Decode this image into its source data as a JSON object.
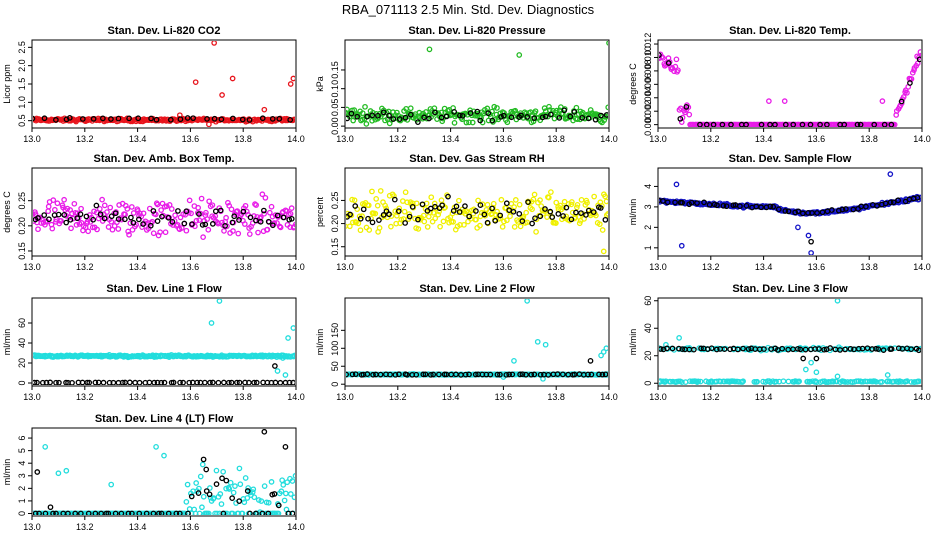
{
  "figure_title": "RBA_071113  2.5 Min. Std. Dev. Diagnostics",
  "colors": {
    "red": "#e8141c",
    "green": "#22bb22",
    "magenta": "#e81ce8",
    "yellow": "#f0f000",
    "blue": "#1414c8",
    "cyan": "#22dddd",
    "black": "#000000"
  },
  "chart_data": [
    {
      "type": "scatter",
      "title": "Stan. Dev. Li-820 CO2",
      "ylabel": "Licor ppm",
      "xlim": [
        13.0,
        14.0
      ],
      "ylim": [
        0.3,
        2.7
      ],
      "xticks": [
        "13.0",
        "13.2",
        "13.4",
        "13.6",
        "13.8",
        "14.0"
      ],
      "yticks": [
        {
          "v": 0.5,
          "label": "0.5"
        },
        {
          "v": 1.0,
          "label": "1.0"
        },
        {
          "v": 1.5,
          "label": "1.5"
        },
        {
          "v": 2.0,
          "label": "2.0"
        },
        {
          "v": 2.5,
          "label": "2.5"
        }
      ],
      "series": [
        {
          "name": "main",
          "color": "red",
          "base": 0.52,
          "noise": 0.06,
          "spikes": [
            [
              13.69,
              2.62
            ],
            [
              13.62,
              1.55
            ],
            [
              13.76,
              1.65
            ],
            [
              13.72,
              1.2
            ],
            [
              13.99,
              1.65
            ],
            [
              13.98,
              1.5
            ],
            [
              13.88,
              0.8
            ],
            [
              13.67,
              0.4
            ],
            [
              13.56,
              0.65
            ]
          ]
        },
        {
          "name": "overlay",
          "color": "black",
          "base": 0.55,
          "noise": 0.05,
          "count": 28,
          "spikes": []
        }
      ]
    },
    {
      "type": "scatter",
      "title": "Stan. Dev. Li-820 Pressure",
      "ylabel": "kPa",
      "xlim": [
        13.0,
        14.0
      ],
      "ylim": [
        -0.005,
        0.23
      ],
      "xticks": [
        "13.0",
        "13.2",
        "13.4",
        "13.6",
        "13.8",
        "14.0"
      ],
      "yticks": [
        {
          "v": 0.0,
          "label": "0.00"
        },
        {
          "v": 0.05,
          "label": "0.05"
        },
        {
          "v": 0.1,
          "label": "0.10"
        },
        {
          "v": 0.15,
          "label": "0.15"
        }
      ],
      "series": [
        {
          "name": "main",
          "color": "green",
          "base": 0.03,
          "noise": 0.028,
          "spikes": [
            [
              13.32,
              0.205
            ],
            [
              13.66,
              0.19
            ],
            [
              14.0,
              0.222
            ]
          ]
        },
        {
          "name": "overlay",
          "color": "black",
          "base": 0.025,
          "noise": 0.02,
          "count": 45,
          "spikes": []
        }
      ]
    },
    {
      "type": "scatter",
      "title": "Stan. Dev. Li-820 Temp.",
      "ylabel": "degrees C",
      "xlim": [
        13.0,
        14.0
      ],
      "ylim": [
        -0.0005,
        0.0126
      ],
      "xticks": [
        "13.0",
        "13.2",
        "13.4",
        "13.6",
        "13.8",
        "14.0"
      ],
      "yticks": [
        {
          "v": 0.0,
          "label": "0.000"
        },
        {
          "v": 0.002,
          "label": "0.002"
        },
        {
          "v": 0.004,
          "label": "0.004"
        },
        {
          "v": 0.006,
          "label": "0.006"
        },
        {
          "v": 0.008,
          "label": "0.008"
        },
        {
          "v": 0.01,
          "label": "0.010"
        },
        {
          "v": 0.012,
          "label": "0.012"
        }
      ],
      "series": [
        {
          "name": "main",
          "color": "magenta",
          "base": 0.0,
          "noise": 0.0,
          "profile": "temp",
          "spikes": [
            [
              13.42,
              0.0035
            ],
            [
              13.48,
              0.0035
            ],
            [
              13.85,
              0.0035
            ]
          ]
        },
        {
          "name": "overlay",
          "color": "black",
          "base": 0.0,
          "noise": 0.0,
          "count": 30,
          "profile": "temp",
          "spikes": []
        }
      ]
    },
    {
      "type": "scatter",
      "title": "Stan. Dev. Amb. Box Temp.",
      "ylabel": "degrees C",
      "xlim": [
        13.0,
        14.0
      ],
      "ylim": [
        0.14,
        0.315
      ],
      "xticks": [
        "13.0",
        "13.2",
        "13.4",
        "13.6",
        "13.8",
        "14.0"
      ],
      "yticks": [
        {
          "v": 0.15,
          "label": "0.15"
        },
        {
          "v": 0.2,
          "label": "0.20"
        },
        {
          "v": 0.25,
          "label": "0.25"
        }
      ],
      "series": [
        {
          "name": "main",
          "color": "magenta",
          "base": 0.215,
          "noise": 0.055,
          "spikes": []
        },
        {
          "name": "overlay",
          "color": "black",
          "base": 0.215,
          "noise": 0.03,
          "count": 55,
          "spikes": []
        }
      ]
    },
    {
      "type": "scatter",
      "title": "Stan. Dev. Gas Stream RH",
      "ylabel": "percent",
      "xlim": [
        13.0,
        14.0
      ],
      "ylim": [
        0.13,
        0.32
      ],
      "xticks": [
        "13.0",
        "13.2",
        "13.4",
        "13.6",
        "13.8",
        "14.0"
      ],
      "yticks": [
        {
          "v": 0.15,
          "label": "0.15"
        },
        {
          "v": 0.2,
          "label": "0.20"
        },
        {
          "v": 0.25,
          "label": "0.25"
        }
      ],
      "series": [
        {
          "name": "main",
          "color": "yellow",
          "base": 0.225,
          "noise": 0.06,
          "spikes": [
            [
              13.98,
              0.14
            ]
          ]
        },
        {
          "name": "overlay",
          "color": "black",
          "base": 0.225,
          "noise": 0.045,
          "count": 60,
          "spikes": []
        }
      ]
    },
    {
      "type": "scatter",
      "title": "Stan. Dev. Sample Flow",
      "ylabel": "ml/min",
      "xlim": [
        13.0,
        14.0
      ],
      "ylim": [
        0.6,
        4.9
      ],
      "xticks": [
        "13.0",
        "13.2",
        "13.4",
        "13.6",
        "13.8",
        "14.0"
      ],
      "yticks": [
        {
          "v": 1,
          "label": "1"
        },
        {
          "v": 2,
          "label": "2"
        },
        {
          "v": 3,
          "label": "3"
        },
        {
          "v": 4,
          "label": "4"
        }
      ],
      "series": [
        {
          "name": "main",
          "color": "blue",
          "base": 3.0,
          "noise": 0.12,
          "profile": "flow",
          "spikes": [
            [
              13.07,
              4.1
            ],
            [
              13.09,
              1.1
            ],
            [
              13.58,
              0.75
            ],
            [
              13.57,
              1.6
            ],
            [
              13.88,
              4.6
            ],
            [
              13.53,
              2.0
            ]
          ]
        },
        {
          "name": "overlay",
          "color": "black",
          "base": 3.0,
          "noise": 0.08,
          "count": 55,
          "profile": "flow",
          "spikes": [
            [
              13.58,
              1.3
            ]
          ]
        }
      ]
    },
    {
      "type": "scatter",
      "title": "Stan. Dev. Line 1 Flow",
      "ylabel": "ml/min",
      "xlim": [
        13.0,
        14.0
      ],
      "ylim": [
        -3,
        85
      ],
      "xticks": [
        "13.0",
        "13.2",
        "13.4",
        "13.6",
        "13.8",
        "14.0"
      ],
      "yticks": [
        {
          "v": 0,
          "label": "0"
        },
        {
          "v": 20,
          "label": "20"
        },
        {
          "v": 40,
          "label": "40"
        },
        {
          "v": 60,
          "label": "60"
        }
      ],
      "series": [
        {
          "name": "main",
          "color": "cyan",
          "base": 27,
          "noise": 1.5,
          "spikes": [
            [
              13.68,
              60
            ],
            [
              13.71,
              82
            ],
            [
              13.95,
              25
            ],
            [
              13.99,
              55
            ],
            [
              13.97,
              45
            ],
            [
              13.93,
              12
            ],
            [
              13.96,
              8
            ]
          ]
        },
        {
          "name": "overlay",
          "color": "black",
          "base": 0.4,
          "noise": 0.3,
          "count": 60,
          "spikes": [
            [
              13.92,
              17
            ]
          ]
        }
      ]
    },
    {
      "type": "scatter",
      "title": "Stan. Dev. Line 2 Flow",
      "ylabel": "ml/min",
      "xlim": [
        13.0,
        14.0
      ],
      "ylim": [
        -5,
        240
      ],
      "xticks": [
        "13.0",
        "13.2",
        "13.4",
        "13.6",
        "13.8",
        "14.0"
      ],
      "yticks": [
        {
          "v": 0,
          "label": "0"
        },
        {
          "v": 50,
          "label": "50"
        },
        {
          "v": 100,
          "label": "100"
        },
        {
          "v": 150,
          "label": "150"
        }
      ],
      "series": [
        {
          "name": "main",
          "color": "cyan",
          "base": 27,
          "noise": 2.0,
          "spikes": [
            [
              13.69,
              232
            ],
            [
              13.64,
              65
            ],
            [
              13.73,
              118
            ],
            [
              13.76,
              110
            ],
            [
              13.98,
              90
            ],
            [
              13.99,
              100
            ],
            [
              13.97,
              80
            ],
            [
              13.6,
              20
            ],
            [
              13.75,
              15
            ]
          ]
        },
        {
          "name": "overlay",
          "color": "black",
          "base": 27,
          "noise": 1.5,
          "count": 60,
          "spikes": [
            [
              13.93,
              65
            ]
          ]
        }
      ]
    },
    {
      "type": "scatter",
      "title": "Stan. Dev. Line 3 Flow",
      "ylabel": "ml/min",
      "xlim": [
        13.0,
        14.0
      ],
      "ylim": [
        -2,
        62
      ],
      "xticks": [
        "13.0",
        "13.2",
        "13.4",
        "13.6",
        "13.8",
        "14.0"
      ],
      "yticks": [
        {
          "v": 0,
          "label": "0"
        },
        {
          "v": 20,
          "label": "20"
        },
        {
          "v": 40,
          "label": "40"
        },
        {
          "v": 60,
          "label": "60"
        }
      ],
      "series": [
        {
          "name": "main",
          "color": "cyan",
          "base": 25,
          "noise": 1.5,
          "dual": true,
          "spikes": [
            [
              13.68,
              60
            ],
            [
              13.08,
              33
            ],
            [
              13.03,
              28
            ],
            [
              13.58,
              15
            ],
            [
              13.56,
              10
            ],
            [
              13.6,
              8
            ],
            [
              13.68,
              5
            ],
            [
              13.87,
              6
            ]
          ]
        },
        {
          "name": "overlay",
          "color": "black",
          "base": 25,
          "noise": 1.2,
          "count": 60,
          "spikes": [
            [
              13.55,
              18
            ],
            [
              13.6,
              18
            ]
          ]
        }
      ]
    },
    {
      "type": "scatter",
      "title": "Stan. Dev. Line 4 (LT) Flow",
      "ylabel": "ml/min",
      "xlim": [
        13.0,
        14.0
      ],
      "ylim": [
        -0.2,
        6.8
      ],
      "xticks": [
        "13.0",
        "13.2",
        "13.4",
        "13.6",
        "13.8",
        "14.0"
      ],
      "yticks": [
        {
          "v": 0,
          "label": "0"
        },
        {
          "v": 1,
          "label": "1"
        },
        {
          "v": 2,
          "label": "2"
        },
        {
          "v": 3,
          "label": "3"
        },
        {
          "v": 4,
          "label": "4"
        },
        {
          "v": 5,
          "label": "5"
        },
        {
          "v": 6,
          "label": "6"
        }
      ],
      "series": [
        {
          "name": "main",
          "color": "cyan",
          "base": 0.0,
          "noise": 0.0,
          "profile": "lt",
          "spikes": [
            [
              13.05,
              5.3
            ],
            [
              13.1,
              3.2
            ],
            [
              13.13,
              3.4
            ],
            [
              13.3,
              2.3
            ],
            [
              13.47,
              5.3
            ],
            [
              13.5,
              4.6
            ]
          ]
        },
        {
          "name": "overlay",
          "color": "black",
          "base": 0.0,
          "noise": 0.0,
          "count": 45,
          "profile": "lt",
          "spikes": [
            [
              13.02,
              3.3
            ],
            [
              13.07,
              0.5
            ],
            [
              13.65,
              4.3
            ],
            [
              13.66,
              3.5
            ],
            [
              13.72,
              2.8
            ],
            [
              13.88,
              6.5
            ],
            [
              13.96,
              5.3
            ],
            [
              13.91,
              1.5
            ]
          ]
        }
      ]
    }
  ]
}
